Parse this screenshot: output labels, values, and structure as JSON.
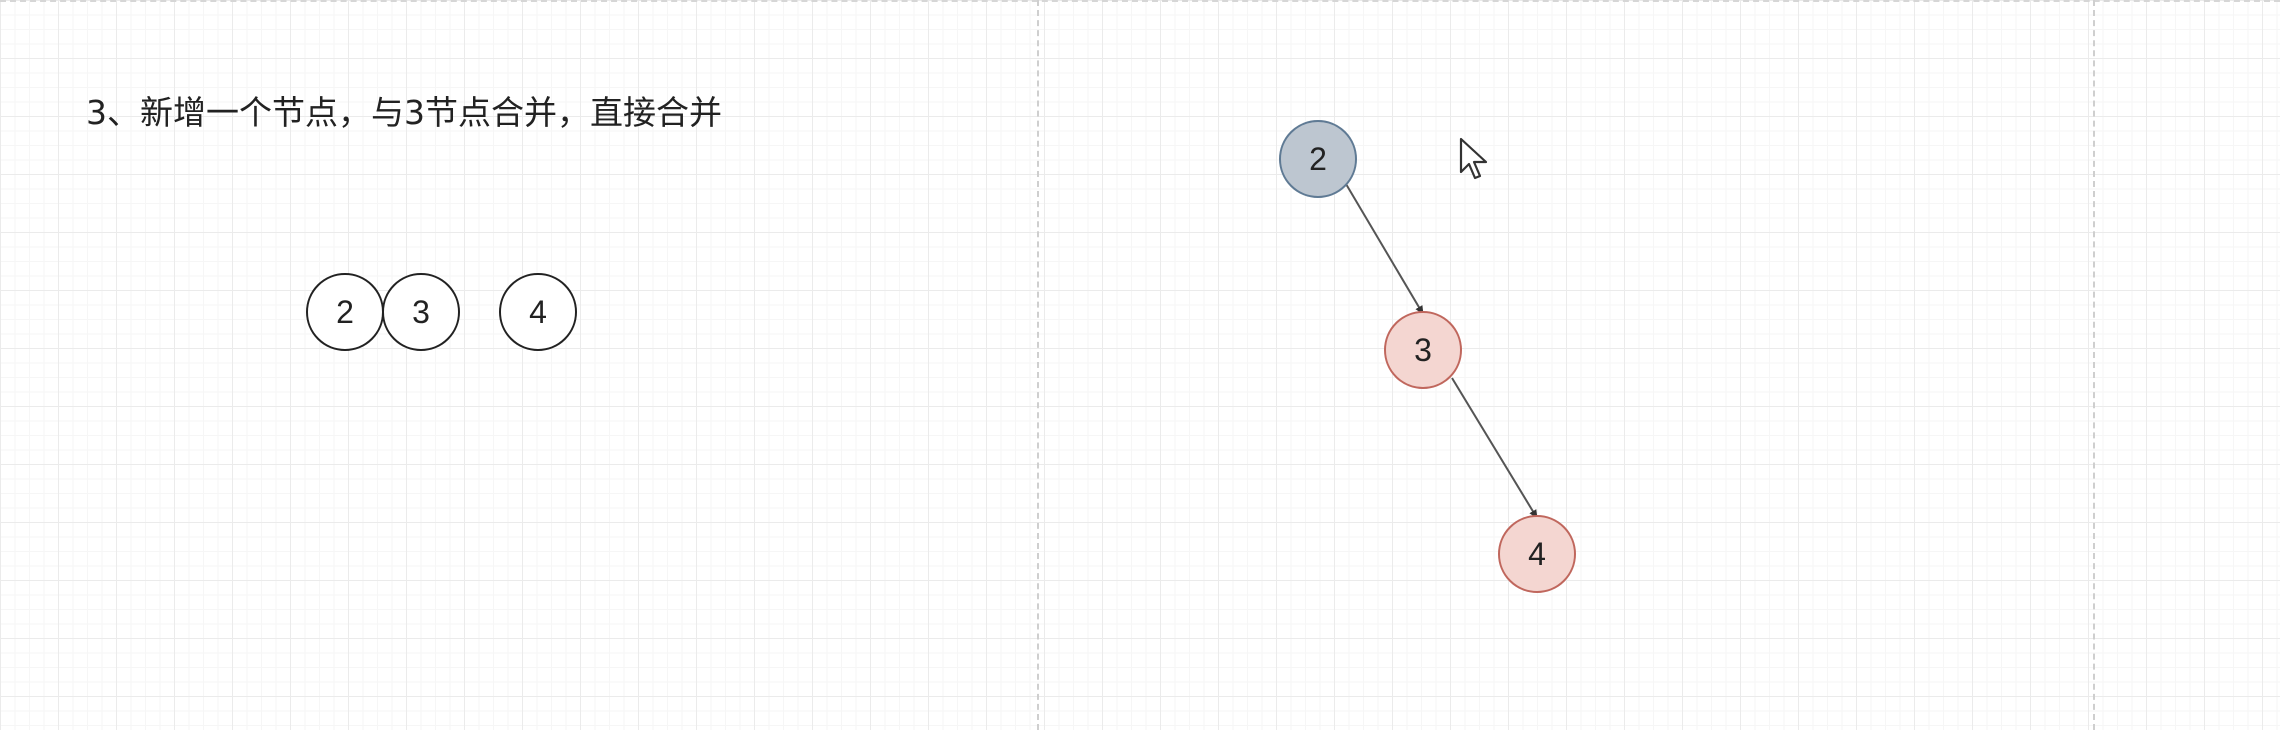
{
  "colors": {
    "gray_fill": "#bdc6d0",
    "gray_stroke": "#5f7a94",
    "pink_fill": "#f4d6d1",
    "pink_stroke": "#c0675d",
    "edge": "#555555"
  },
  "left_panel": {
    "caption": "3、新增一个节点，与3节点合并，直接合并",
    "nodes": [
      "2",
      "3",
      "4"
    ]
  },
  "right_panel": {
    "tree_nodes": [
      "2",
      "3",
      "4"
    ]
  },
  "icons": {
    "cursor": "mouse-pointer-icon"
  }
}
